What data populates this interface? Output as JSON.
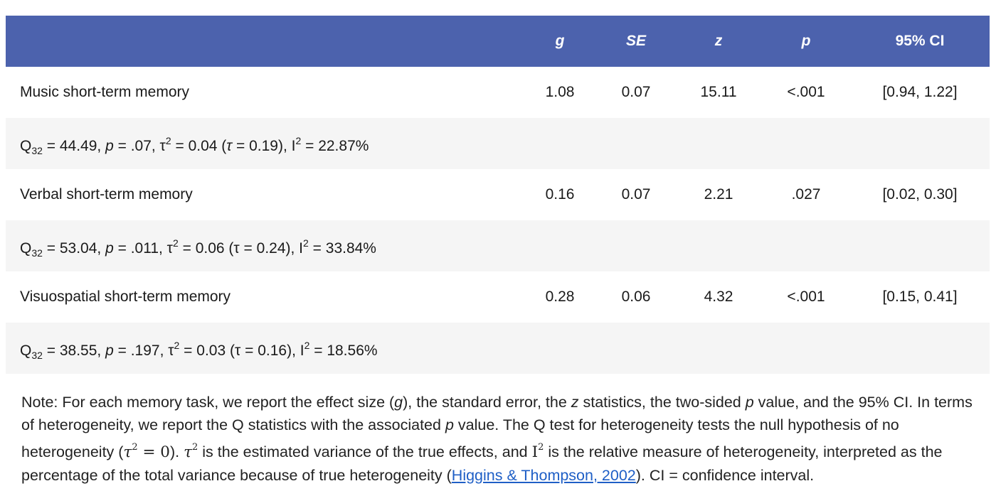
{
  "header": {
    "columns": [
      "g",
      "SE",
      "z",
      "p",
      "95% CI"
    ]
  },
  "rows": [
    {
      "label": "Music short-term memory",
      "g": "1.08",
      "se": "0.07",
      "z": "15.11",
      "p": "<.001",
      "ci": "[0.94, 1.22]",
      "het": {
        "q_sub": "32",
        "q_val": " = 44.49, ",
        "p_label": "p",
        "p_val": " = .07, τ",
        "tau_sup": "2",
        "tau_val": " = 0.04 (",
        "tau_sym": "τ",
        "tau_rest": " = 0.19), I",
        "i_sup": "2",
        "i_val": " = 22.87%"
      }
    },
    {
      "label": "Verbal short-term memory",
      "g": "0.16",
      "se": "0.07",
      "z": "2.21",
      "p": ".027",
      "ci": "[0.02, 0.30]",
      "het": {
        "q_sub": "32",
        "q_val": " = 53.04, ",
        "p_label": "p",
        "p_val": " = .011, τ",
        "tau_sup": "2",
        "tau_val": " = 0.06 (",
        "tau_sym": "τ",
        "tau_rest": " = 0.24), I",
        "i_sup": "2",
        "i_val": " = 33.84%"
      }
    },
    {
      "label": "Visuospatial short-term memory",
      "g": "0.28",
      "se": "0.06",
      "z": "4.32",
      "p": "<.001",
      "ci": "[0.15, 0.41]",
      "het": {
        "q_sub": "32",
        "q_val": " = 38.55, ",
        "p_label": "p",
        "p_val": " = .197, τ",
        "tau_sup": "2",
        "tau_val": " = 0.03 (",
        "tau_sym": "τ",
        "tau_rest": " = 0.16), I",
        "i_sup": "2",
        "i_val": " = 18.56%"
      }
    }
  ],
  "note": {
    "t1": "Note: For each memory task, we report the effect size (",
    "g": "g",
    "t2": "), the standard error, the ",
    "z": "z",
    "t3": " statistics, the two-sided ",
    "p1": "p",
    "t4": " value, and the 95% CI. In terms of heterogeneity, we report the Q statistics with the associated ",
    "p2": "p",
    "t5": " value. The Q test for heterogeneity tests the null hypothesis of no heterogeneity (",
    "tau1": "τ",
    "sup1": "2",
    "eq": " = 0",
    "t6": "). ",
    "tau2": "τ",
    "sup2": "2",
    "t7": " is the estimated variance of the true effects, and ",
    "I": "I",
    "sup3": "2",
    "t8": " is the relative measure of heterogeneity, interpreted as the percentage of the total variance because of true heterogeneity (",
    "link": "Higgins & Thompson, 2002",
    "t9": "). CI = confidence interval."
  },
  "colors": {
    "header_bg": "#4c62ad",
    "alt_row_bg": "#f5f5f5",
    "link": "#1f5fc6"
  }
}
